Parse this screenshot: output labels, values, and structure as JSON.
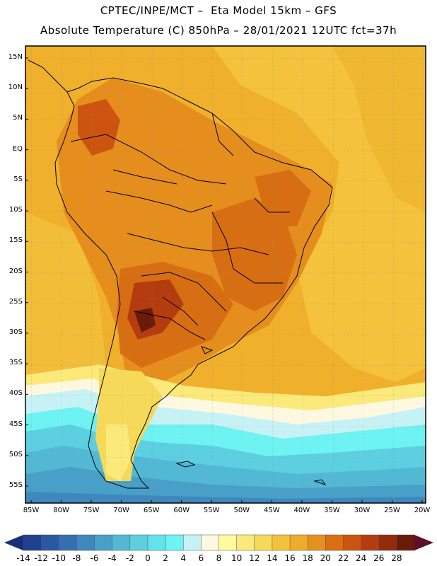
{
  "header": {
    "line1": "CPTEC/INPE/MCT –  Eta Model 15km – GFS",
    "line2": "Absolute Temperature (C) 850hPa – 28/01/2021 12UTC fct=37h"
  },
  "map": {
    "lat_labels": [
      "15N",
      "10N",
      "5N",
      "EQ",
      "5S",
      "10S",
      "15S",
      "20S",
      "25S",
      "30S",
      "35S",
      "40S",
      "45S",
      "50S",
      "55S"
    ],
    "lon_labels": [
      "85W",
      "80W",
      "75W",
      "70W",
      "65W",
      "60W",
      "55W",
      "50W",
      "45W",
      "40W",
      "35W",
      "30W",
      "25W",
      "20W"
    ],
    "lat_values": [
      15,
      10,
      5,
      0,
      -5,
      -10,
      -15,
      -20,
      -25,
      -30,
      -35,
      -40,
      -45,
      -50,
      -55
    ],
    "lon_values": [
      -85,
      -80,
      -75,
      -70,
      -65,
      -60,
      -55,
      -50,
      -45,
      -40,
      -35,
      -30,
      -25,
      -20
    ]
  },
  "colorbar": {
    "labels": [
      "-14",
      "-12",
      "-10",
      "-8",
      "-6",
      "-4",
      "-2",
      "0",
      "2",
      "4",
      "6",
      "8",
      "10",
      "12",
      "14",
      "16",
      "18",
      "20",
      "22",
      "24",
      "26",
      "28"
    ],
    "colors": [
      "#1f3f8f",
      "#2a58a3",
      "#3470b0",
      "#3e88bd",
      "#48a0c8",
      "#52b8d4",
      "#5ccfe0",
      "#62e3ea",
      "#6ef2f2",
      "#c6f2f6",
      "#fff8e0",
      "#fffaa0",
      "#fbe97a",
      "#f7d95a",
      "#f3c23c",
      "#eeac2a",
      "#e49020",
      "#d96e12",
      "#cc5410",
      "#b53c0e",
      "#962a0c",
      "#6a1a08"
    ]
  }
}
